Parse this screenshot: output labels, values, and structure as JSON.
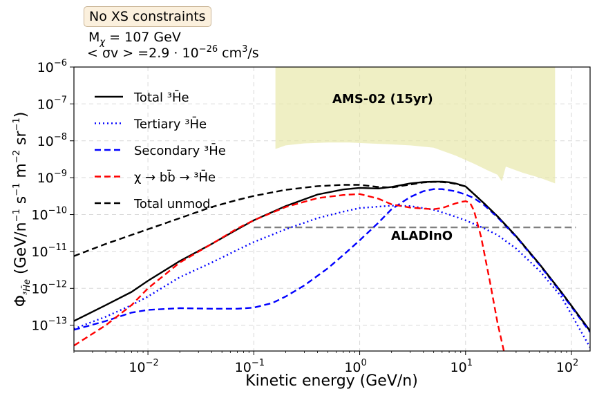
{
  "header": {
    "badge": "No XS constraints",
    "mass_line": "M",
    "mass_sub": "χ",
    "mass_value": " = 107 GeV",
    "xs_prefix": "< σv > =2.9 · 10",
    "xs_exp": "−26",
    "xs_unit": " cm",
    "xs_unit_exp": "3",
    "xs_suffix": "/s"
  },
  "chart_data": {
    "type": "line",
    "xlabel": "Kinetic energy (GeV/n)",
    "ylabel_main": "Φ",
    "ylabel_sub": "³H̄e",
    "ylabel_units": " (GeV/n",
    "ylabel_tail": " s",
    "x_scale": "log",
    "y_scale": "log",
    "xlim": [
      0.002,
      150
    ],
    "ylim": [
      2e-14,
      1e-06
    ],
    "x_ticks": [
      {
        "value": 0.01,
        "base": "10",
        "exp": "−2"
      },
      {
        "value": 0.1,
        "base": "10",
        "exp": "−1"
      },
      {
        "value": 1,
        "base": "10",
        "exp": "0"
      },
      {
        "value": 10,
        "base": "10",
        "exp": "1"
      },
      {
        "value": 100,
        "base": "10",
        "exp": "2"
      }
    ],
    "y_ticks": [
      {
        "value": 1e-13,
        "base": "10",
        "exp": "−13"
      },
      {
        "value": 1e-12,
        "base": "10",
        "exp": "−12"
      },
      {
        "value": 1e-11,
        "base": "10",
        "exp": "−11"
      },
      {
        "value": 1e-10,
        "base": "10",
        "exp": "−10"
      },
      {
        "value": 1e-09,
        "base": "10",
        "exp": "−9"
      },
      {
        "value": 1e-08,
        "base": "10",
        "exp": "−8"
      },
      {
        "value": 1e-07,
        "base": "10",
        "exp": "−7"
      },
      {
        "value": 1e-06,
        "base": "10",
        "exp": "−6"
      }
    ],
    "grid": true,
    "legend_position": "upper-left",
    "series": [
      {
        "name": "Total ³H̄e",
        "color": "#000000",
        "style": "solid",
        "x": [
          0.002,
          0.004,
          0.007,
          0.01,
          0.02,
          0.04,
          0.07,
          0.1,
          0.2,
          0.4,
          0.7,
          1.0,
          1.5,
          2,
          3,
          4,
          5,
          6,
          7,
          8,
          10,
          12,
          15,
          20,
          30,
          50,
          80,
          150
        ],
        "y": [
          1.3e-13,
          3.5e-13,
          8e-13,
          1.6e-12,
          5.5e-12,
          1.6e-11,
          4e-11,
          7e-11,
          1.7e-10,
          3.5e-10,
          4.8e-10,
          5.3e-10,
          5.1e-10,
          5.6e-10,
          7e-10,
          7.6e-10,
          7.8e-10,
          7.8e-10,
          7.5e-10,
          7e-10,
          5.8e-10,
          3.6e-10,
          2e-10,
          9e-11,
          2.6e-11,
          4.5e-12,
          8e-13,
          7e-14
        ]
      },
      {
        "name": "Tertiary ³H̄e",
        "color": "#0000ff",
        "style": "dotted",
        "x": [
          0.002,
          0.004,
          0.007,
          0.01,
          0.02,
          0.04,
          0.07,
          0.1,
          0.2,
          0.4,
          0.7,
          1,
          2,
          3,
          5,
          7,
          10,
          15,
          20,
          30,
          50,
          80,
          150
        ],
        "y": [
          8e-14,
          1.7e-13,
          3.5e-13,
          6e-13,
          2e-12,
          5e-12,
          1.1e-11,
          1.8e-11,
          4e-11,
          8e-11,
          1.2e-10,
          1.5e-10,
          1.75e-10,
          1.7e-10,
          1.35e-10,
          1e-10,
          7e-11,
          4.2e-11,
          2.8e-11,
          1.2e-11,
          3e-12,
          6e-13,
          2.5e-14
        ]
      },
      {
        "name": "Secondary ³H̄e",
        "color": "#0000ff",
        "style": "dashed",
        "x": [
          0.002,
          0.004,
          0.007,
          0.01,
          0.02,
          0.04,
          0.07,
          0.1,
          0.15,
          0.2,
          0.3,
          0.5,
          0.7,
          1.0,
          1.5,
          2,
          3,
          4,
          5,
          6,
          8,
          10,
          12,
          15,
          20,
          30,
          50,
          80,
          150
        ],
        "y": [
          7.5e-14,
          1.3e-13,
          2.2e-13,
          2.6e-13,
          2.9e-13,
          2.8e-13,
          2.8e-13,
          3e-13,
          4e-13,
          6e-13,
          1.2e-12,
          3.5e-12,
          8e-12,
          2e-11,
          6e-11,
          1.4e-10,
          3e-10,
          4.3e-10,
          4.9e-10,
          4.9e-10,
          4.3e-10,
          3.5e-10,
          2.8e-10,
          1.8e-10,
          8.5e-11,
          2.5e-11,
          4.3e-12,
          7.5e-13,
          6.5e-14
        ]
      },
      {
        "name": "χ → bb̄ → ³H̄e",
        "color": "#ff0000",
        "style": "dashed",
        "x": [
          0.002,
          0.004,
          0.007,
          0.01,
          0.02,
          0.04,
          0.07,
          0.1,
          0.2,
          0.4,
          0.7,
          1.0,
          1.5,
          2,
          3,
          4,
          5,
          6,
          7,
          8,
          9,
          10,
          11,
          12,
          14,
          17,
          20,
          23
        ],
        "y": [
          2.8e-14,
          1e-13,
          3.5e-13,
          1e-12,
          5e-12,
          1.6e-11,
          4.2e-11,
          7e-11,
          1.6e-10,
          2.8e-10,
          3.4e-10,
          3.6e-10,
          2.7e-10,
          1.9e-10,
          1.55e-10,
          1.45e-10,
          1.4e-10,
          1.5e-10,
          1.75e-10,
          2e-10,
          2.2e-10,
          2.3e-10,
          2.1e-10,
          1.3e-10,
          2.5e-11,
          1.5e-12,
          1.2e-13,
          2e-14
        ]
      },
      {
        "name": "Total unmod.",
        "color": "#000000",
        "style": "dashed",
        "x": [
          0.002,
          0.004,
          0.007,
          0.01,
          0.02,
          0.04,
          0.07,
          0.1,
          0.2,
          0.4,
          0.7,
          1.0,
          1.5,
          2,
          3,
          4,
          5,
          6,
          7,
          8,
          10,
          12,
          15,
          20,
          30,
          50,
          80,
          150
        ],
        "y": [
          7.5e-12,
          1.6e-11,
          2.8e-11,
          4e-11,
          8e-11,
          1.6e-10,
          2.5e-10,
          3.2e-10,
          4.7e-10,
          5.9e-10,
          6.4e-10,
          6.4e-10,
          5.6e-10,
          5.4e-10,
          6.5e-10,
          7.4e-10,
          7.7e-10,
          7.6e-10,
          7.3e-10,
          6.8e-10,
          5.8e-10,
          3.6e-10,
          2e-10,
          9e-11,
          2.6e-11,
          4.5e-12,
          8e-13,
          7e-14
        ]
      }
    ],
    "reference_line": {
      "label": "ALADInO",
      "color": "#808080",
      "style": "dashed",
      "y": 4.5e-11,
      "x_range": [
        0.1,
        110
      ]
    },
    "sensitivity_region": {
      "label": "AMS-02 (15yr)",
      "color": "#e6e6a5",
      "x": [
        0.16,
        0.2,
        0.3,
        0.5,
        0.8,
        1.2,
        2,
        3,
        5,
        8,
        12,
        16,
        20,
        22,
        24,
        28,
        35,
        50,
        70
      ],
      "y_lower": [
        6e-09,
        7.5e-09,
        8.5e-09,
        9e-09,
        9e-09,
        8.5e-09,
        8e-09,
        7.5e-09,
        6.5e-09,
        4e-09,
        2.4e-09,
        1.6e-09,
        1.2e-09,
        8e-10,
        2e-09,
        1.7e-09,
        1.35e-09,
        1e-09,
        7e-10
      ],
      "y_upper": 1e-06
    }
  }
}
